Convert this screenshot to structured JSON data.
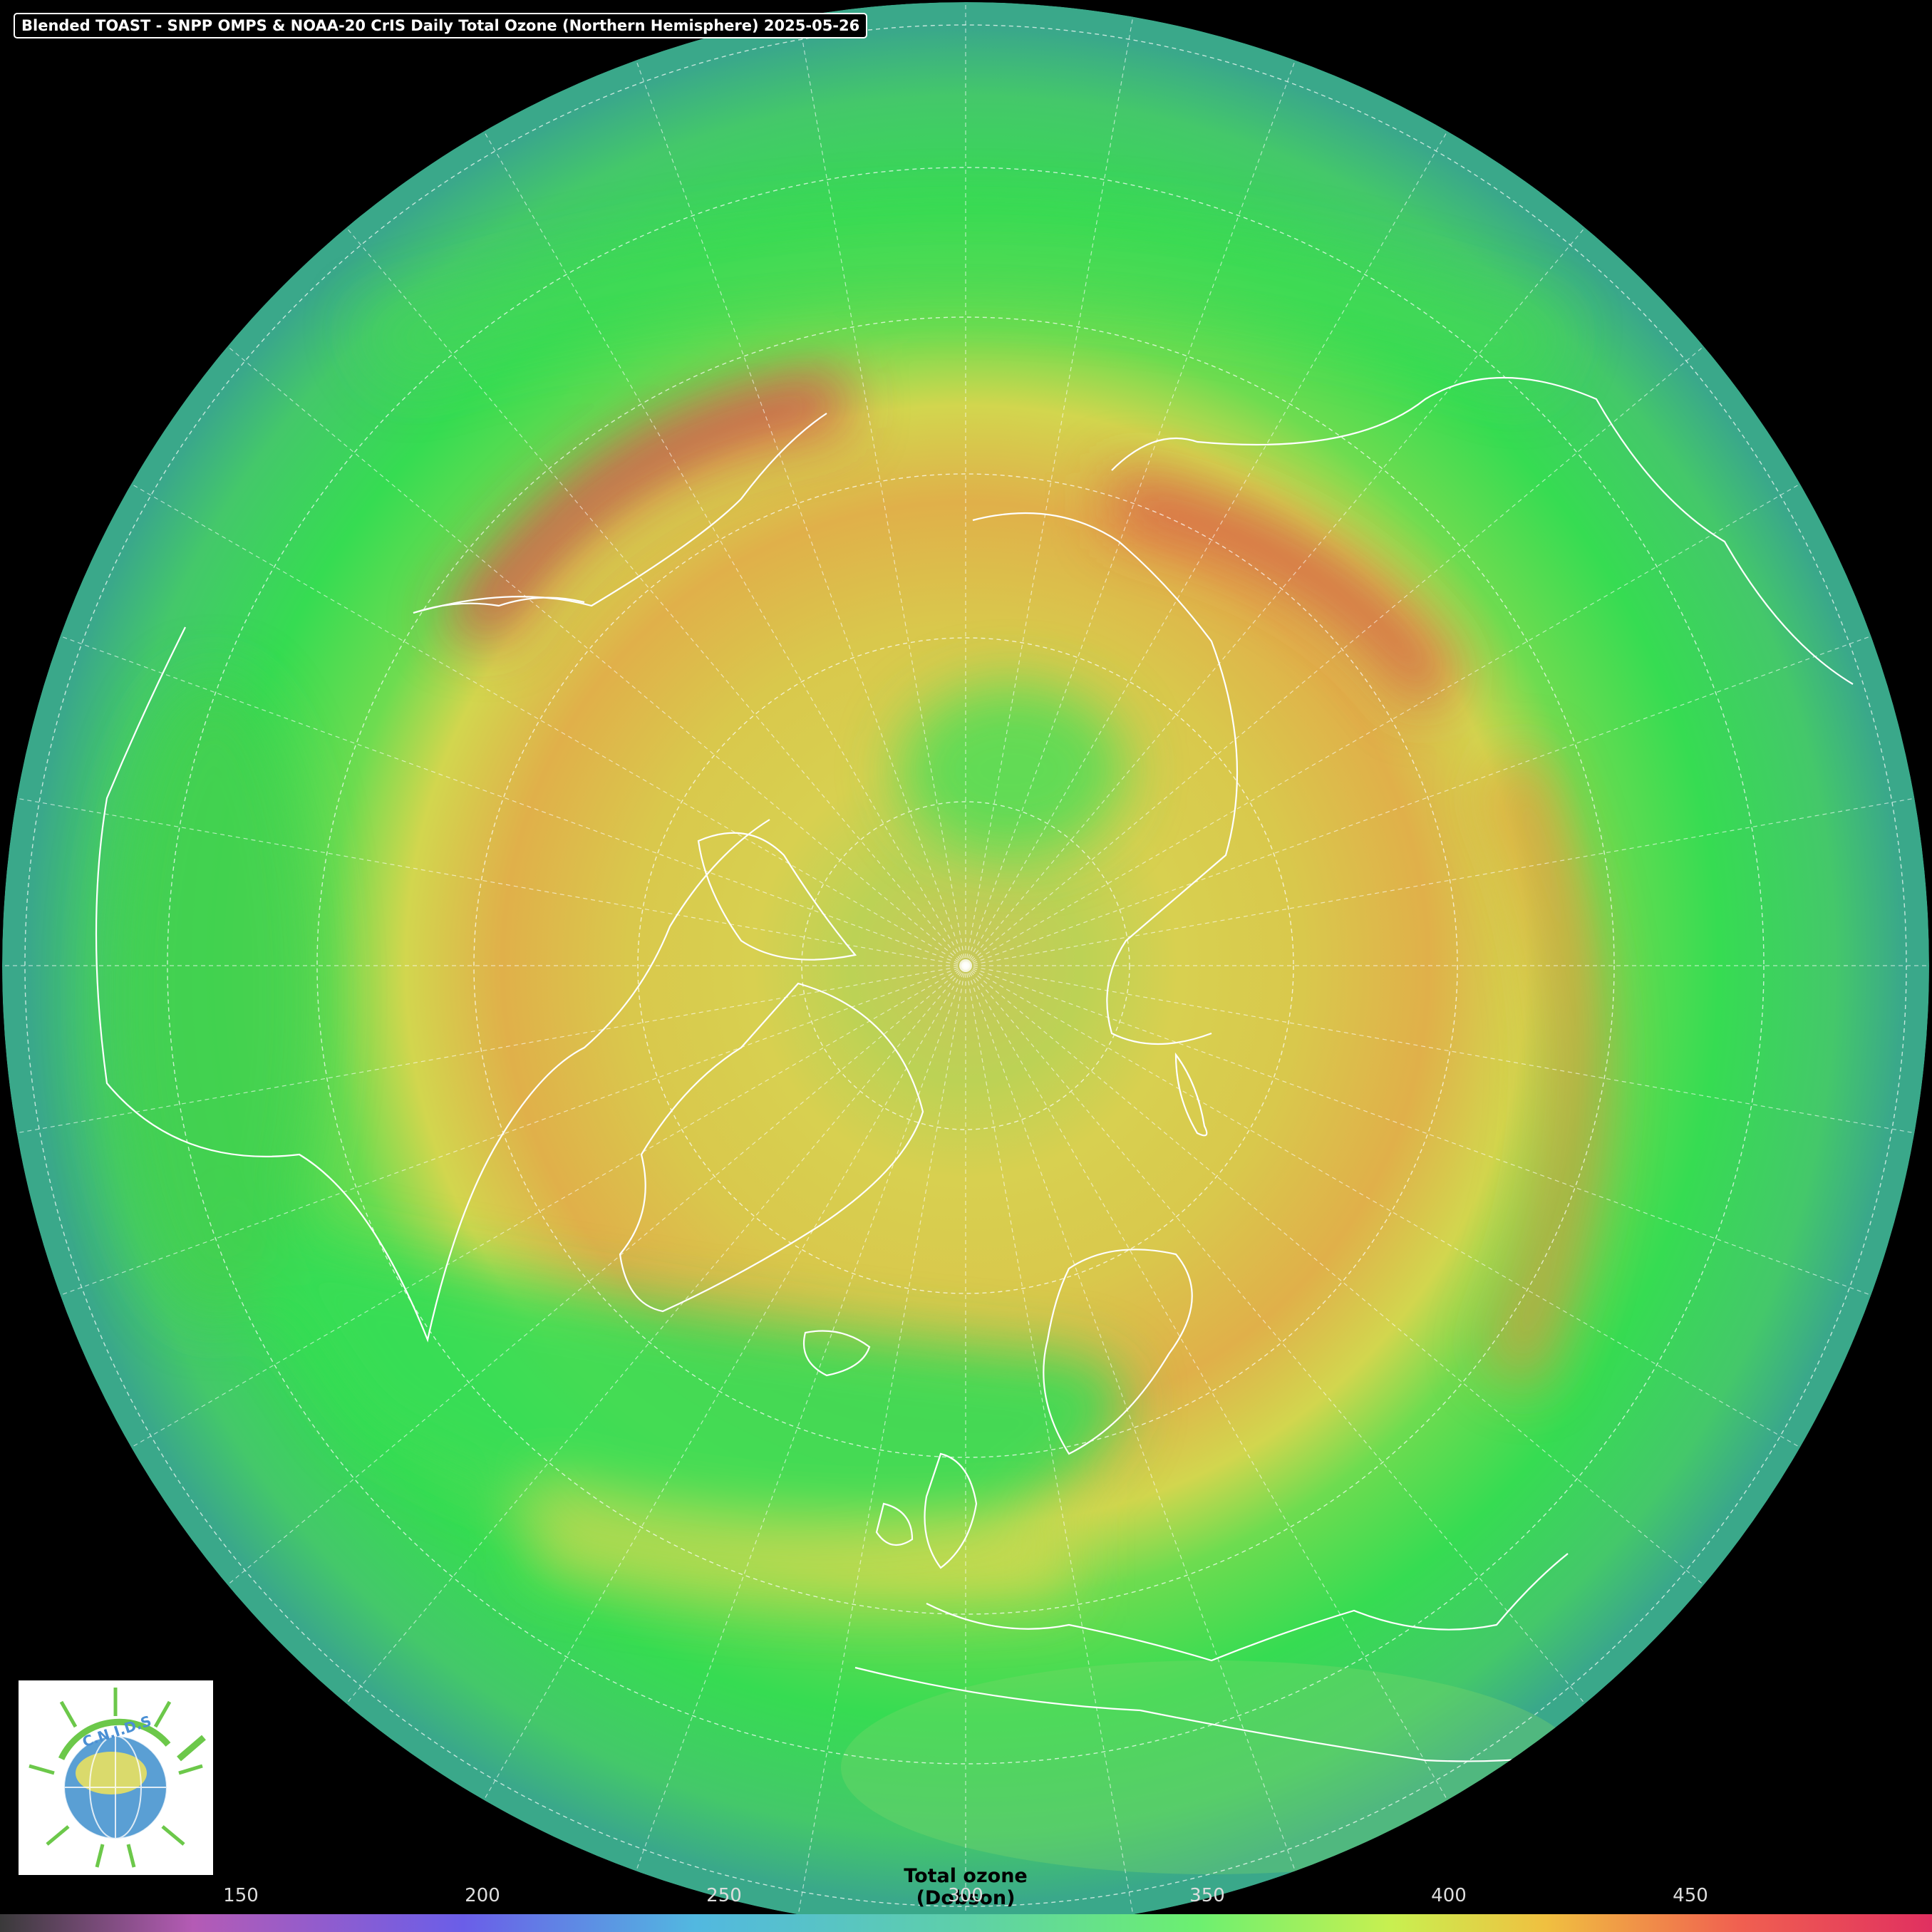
{
  "title": "Blended TOAST - SNPP OMPS & NOAA-20 CrIS Daily Total Ozone (Northern Hemisphere) 2025-05-26",
  "colorbar": {
    "label": "Total ozone (Dobson)",
    "ticks": [
      "150",
      "200",
      "250",
      "300",
      "350",
      "400",
      "450"
    ],
    "stops": [
      "#3a3a3a",
      "#b45bb5",
      "#6a5ee8",
      "#52b8e0",
      "#5ed0a8",
      "#6cf070",
      "#c8f050",
      "#f0c040",
      "#f06050",
      "#e03060"
    ]
  },
  "logo": {
    "text": "C.N.I.D.S"
  },
  "colors": {
    "background": "#000000",
    "ocean_green": "#33dd55",
    "ring_teal": "#3aa88a",
    "ring_yellow": "#dcd64a",
    "ring_red": "#d83c4c",
    "coast": "#ffffff"
  }
}
